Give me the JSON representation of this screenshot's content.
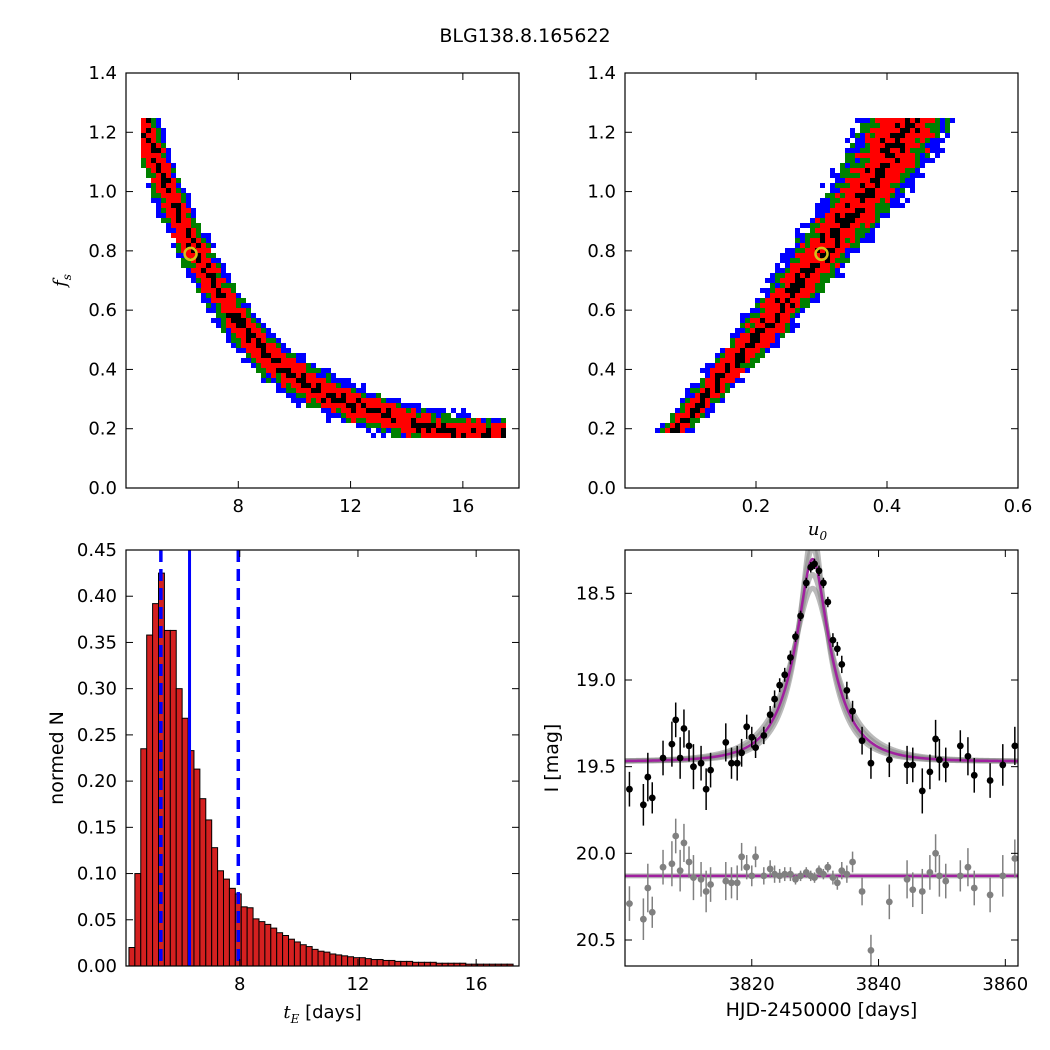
{
  "title": "BLG138.8.165622",
  "colors": {
    "contour_outer": "#0000ff",
    "contour_mid": "#008000",
    "contour_inner": "#ff0000",
    "contour_core": "#000000",
    "best_fit_marker": "#d4c21a",
    "histogram_bar": "#d42020",
    "histogram_edge": "#000000",
    "median_line": "#0000ff",
    "model_curve": "#a0209f",
    "data_primary": "#000000",
    "data_residual": "#808080"
  },
  "chart_data": [
    {
      "id": "fs-vs-tE",
      "type": "heatmap",
      "xlabel": "",
      "ylabel": "f_s",
      "xlim": [
        4.0,
        18.0
      ],
      "ylim": [
        0.0,
        1.4
      ],
      "xticks": [
        8,
        12,
        16
      ],
      "yticks": [
        0.0,
        0.2,
        0.4,
        0.6,
        0.8,
        1.0,
        1.2,
        1.4
      ],
      "xtick_labels": [
        "8",
        "12",
        "16"
      ],
      "ytick_labels": [
        "0.0",
        "0.2",
        "0.4",
        "0.6",
        "0.8",
        "1.0",
        "1.2",
        "1.4"
      ],
      "ridge_x": [
        4.6,
        5.0,
        5.5,
        6.0,
        6.5,
        7.0,
        7.5,
        8.0,
        8.5,
        9.0,
        9.5,
        10.0,
        10.5,
        11.0,
        12.0,
        13.0,
        14.0,
        15.0,
        16.0,
        17.0
      ],
      "ridge_y": [
        1.24,
        1.13,
        1.0,
        0.89,
        0.79,
        0.71,
        0.63,
        0.56,
        0.5,
        0.45,
        0.41,
        0.38,
        0.35,
        0.32,
        0.28,
        0.25,
        0.22,
        0.2,
        0.19,
        0.18
      ],
      "ridge_x_range": [
        4.5,
        17.5
      ],
      "best_fit": {
        "x": 6.3,
        "y": 0.79
      }
    },
    {
      "id": "fs-vs-u0",
      "type": "heatmap",
      "xlabel": "u_0",
      "ylabel": "",
      "xlim": [
        0.0,
        0.6
      ],
      "ylim": [
        0.0,
        1.4
      ],
      "xticks": [
        0.2,
        0.4,
        0.6
      ],
      "yticks": [
        0.0,
        0.2,
        0.4,
        0.6,
        0.8,
        1.0,
        1.2,
        1.4
      ],
      "xtick_labels": [
        "0.2",
        "0.4",
        "0.6"
      ],
      "ytick_labels": [
        "0.0",
        "0.2",
        "0.4",
        "0.6",
        "0.8",
        "1.0",
        "1.2",
        "1.4"
      ],
      "ridge_x": [
        0.07,
        0.1,
        0.15,
        0.2,
        0.25,
        0.3,
        0.35,
        0.4,
        0.43
      ],
      "ridge_y": [
        0.18,
        0.25,
        0.38,
        0.5,
        0.64,
        0.79,
        0.94,
        1.1,
        1.24
      ],
      "ridge_y_range": [
        0.18,
        1.24
      ],
      "best_fit": {
        "x": 0.3,
        "y": 0.79
      }
    },
    {
      "id": "tE-histogram",
      "type": "bar",
      "xlabel": "t_E [days]",
      "xlabel_parts": [
        "t",
        "E",
        " [days]"
      ],
      "ylabel": "normed N",
      "xlim": [
        4.15,
        17.45
      ],
      "ylim": [
        0.0,
        0.45
      ],
      "xticks": [
        8,
        12,
        16
      ],
      "yticks": [
        0.0,
        0.05,
        0.1,
        0.15,
        0.2,
        0.25,
        0.3,
        0.35,
        0.4,
        0.45
      ],
      "xtick_labels": [
        "8",
        "12",
        "16"
      ],
      "ytick_labels": [
        "0.00",
        "0.05",
        "0.10",
        "0.15",
        "0.20",
        "0.25",
        "0.30",
        "0.35",
        "0.40",
        "0.45"
      ],
      "bin_start": 4.25,
      "bin_width": 0.2,
      "values": [
        0.02,
        0.1,
        0.235,
        0.358,
        0.392,
        0.425,
        0.363,
        0.363,
        0.3,
        0.268,
        0.233,
        0.213,
        0.181,
        0.158,
        0.128,
        0.103,
        0.094,
        0.084,
        0.078,
        0.064,
        0.063,
        0.051,
        0.048,
        0.045,
        0.041,
        0.036,
        0.033,
        0.029,
        0.026,
        0.023,
        0.021,
        0.018,
        0.016,
        0.015,
        0.013,
        0.012,
        0.011,
        0.01,
        0.009,
        0.009,
        0.008,
        0.007,
        0.007,
        0.006,
        0.006,
        0.005,
        0.005,
        0.005,
        0.004,
        0.004,
        0.004,
        0.004,
        0.003,
        0.003,
        0.003,
        0.003,
        0.003,
        0.002,
        0.002,
        0.002,
        0.002,
        0.002,
        0.002,
        0.002,
        0.002
      ],
      "median": 6.3,
      "lower": 5.33,
      "upper": 7.95
    },
    {
      "id": "lightcurve",
      "type": "scatter",
      "xlabel": "HJD-2450000 [days]",
      "ylabel": "I [mag]",
      "xlim": [
        3800,
        3862
      ],
      "ylim": [
        20.65,
        18.25
      ],
      "y_inverted": true,
      "xticks": [
        3820,
        3840,
        3860
      ],
      "yticks": [
        18.5,
        19.0,
        19.5,
        20.0,
        20.5
      ],
      "xtick_labels": [
        "3820",
        "3840",
        "3860"
      ],
      "ytick_labels": [
        "18.5",
        "19.0",
        "19.5",
        "20.0",
        "20.5"
      ],
      "model": {
        "t0": 3829.6,
        "tE": 6.3,
        "u0": 0.3,
        "baseline": 19.47,
        "blend_fraction": 0.79
      },
      "residual_offset": 20.13,
      "series": [
        {
          "role": "observations",
          "x": [
            3800.7,
            3802.9,
            3803.6,
            3804.3,
            3806.0,
            3807.4,
            3808.0,
            3808.7,
            3809.3,
            3810.1,
            3810.8,
            3812.0,
            3812.8,
            3813.5,
            3815.9,
            3816.8,
            3817.7,
            3818.4,
            3819.2,
            3820.0,
            3820.6,
            3821.9,
            3822.9,
            3823.6,
            3824.4,
            3825.2,
            3826.1,
            3826.9,
            3827.7,
            3828.6,
            3829.3,
            3829.9,
            3830.6,
            3831.3,
            3832.0,
            3832.8,
            3833.5,
            3834.2,
            3835.0,
            3835.9,
            3837.4,
            3838.8,
            3841.7,
            3844.5,
            3845.4,
            3846.9,
            3848.1,
            3849.0,
            3849.6,
            3850.6,
            3852.9,
            3854.1,
            3855.1,
            3857.6,
            3859.6,
            3861.5
          ],
          "y": [
            19.63,
            19.72,
            19.56,
            19.68,
            19.45,
            19.37,
            19.23,
            19.45,
            19.28,
            19.38,
            19.5,
            19.48,
            19.63,
            19.52,
            19.36,
            19.48,
            19.48,
            19.42,
            19.27,
            19.33,
            19.39,
            19.32,
            19.2,
            19.11,
            19.03,
            18.97,
            18.87,
            18.75,
            18.63,
            18.44,
            18.35,
            18.33,
            18.37,
            18.44,
            18.55,
            18.77,
            18.82,
            18.91,
            19.06,
            19.18,
            19.35,
            19.48,
            19.46,
            19.49,
            19.49,
            19.64,
            19.53,
            19.34,
            19.46,
            19.49,
            19.38,
            19.44,
            19.55,
            19.58,
            19.49,
            19.38
          ],
          "err": [
            0.1,
            0.12,
            0.14,
            0.09,
            0.1,
            0.13,
            0.1,
            0.12,
            0.11,
            0.09,
            0.13,
            0.1,
            0.12,
            0.1,
            0.11,
            0.09,
            0.1,
            0.08,
            0.07,
            0.06,
            0.06,
            0.05,
            0.05,
            0.05,
            0.04,
            0.04,
            0.04,
            0.03,
            0.03,
            0.03,
            0.03,
            0.03,
            0.03,
            0.03,
            0.03,
            0.04,
            0.04,
            0.05,
            0.05,
            0.06,
            0.08,
            0.09,
            0.1,
            0.11,
            0.1,
            0.13,
            0.1,
            0.11,
            0.12,
            0.1,
            0.09,
            0.11,
            0.1,
            0.1,
            0.12,
            0.11
          ]
        },
        {
          "role": "residuals",
          "x": [
            3800.7,
            3802.9,
            3803.6,
            3804.3,
            3806.0,
            3807.4,
            3808.0,
            3808.7,
            3809.3,
            3810.1,
            3810.8,
            3812.0,
            3812.8,
            3813.5,
            3815.9,
            3816.8,
            3817.7,
            3818.4,
            3819.2,
            3820.0,
            3820.6,
            3821.9,
            3822.9,
            3823.6,
            3824.4,
            3825.2,
            3826.1,
            3826.9,
            3827.7,
            3828.6,
            3829.3,
            3829.9,
            3830.6,
            3831.3,
            3832.0,
            3832.8,
            3833.5,
            3834.2,
            3835.0,
            3835.9,
            3837.4,
            3838.8,
            3841.7,
            3844.5,
            3845.4,
            3846.9,
            3848.1,
            3849.0,
            3849.6,
            3850.6,
            3852.9,
            3854.1,
            3855.1,
            3857.6,
            3859.6,
            3861.5
          ],
          "y": [
            20.29,
            20.38,
            20.2,
            20.34,
            20.08,
            20.06,
            19.9,
            20.1,
            19.94,
            20.05,
            20.14,
            20.15,
            20.22,
            20.18,
            20.16,
            20.17,
            20.17,
            20.02,
            20.08,
            20.13,
            20.02,
            20.13,
            20.09,
            20.12,
            20.13,
            20.12,
            20.12,
            20.15,
            20.13,
            20.11,
            20.13,
            20.14,
            20.1,
            20.12,
            20.08,
            20.14,
            20.17,
            20.1,
            20.12,
            20.05,
            20.22,
            20.56,
            20.28,
            20.15,
            20.21,
            20.22,
            20.11,
            20.0,
            20.13,
            20.16,
            20.13,
            20.08,
            20.2,
            20.24,
            20.13,
            20.03
          ],
          "err": [
            0.1,
            0.12,
            0.14,
            0.09,
            0.1,
            0.13,
            0.1,
            0.12,
            0.11,
            0.09,
            0.13,
            0.1,
            0.12,
            0.1,
            0.11,
            0.09,
            0.1,
            0.08,
            0.07,
            0.06,
            0.06,
            0.05,
            0.05,
            0.05,
            0.04,
            0.04,
            0.04,
            0.03,
            0.03,
            0.03,
            0.03,
            0.03,
            0.03,
            0.03,
            0.03,
            0.04,
            0.04,
            0.05,
            0.05,
            0.06,
            0.08,
            0.09,
            0.1,
            0.11,
            0.1,
            0.13,
            0.1,
            0.11,
            0.12,
            0.1,
            0.09,
            0.11,
            0.1,
            0.1,
            0.12,
            0.11
          ]
        }
      ]
    }
  ]
}
